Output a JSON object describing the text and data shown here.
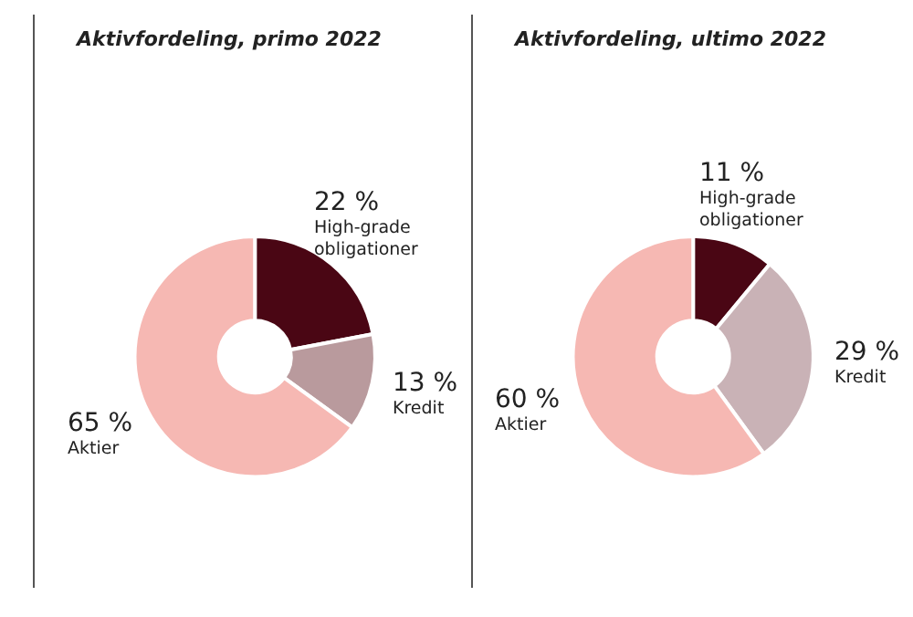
{
  "chart_data": [
    {
      "type": "donut",
      "title": "Aktivfordeling, primo 2022",
      "categories": [
        "High-grade obligationer",
        "Kredit",
        "Aktier"
      ],
      "values": [
        22,
        13,
        65
      ],
      "colors": [
        "#4a0614",
        "#b99a9d",
        "#f6b8b3"
      ],
      "value_labels": [
        "22 %",
        "13 %",
        "65 %"
      ]
    },
    {
      "type": "donut",
      "title": "Aktivfordeling, ultimo 2022",
      "categories": [
        "High-grade obligationer",
        "Kredit",
        "Aktier"
      ],
      "values": [
        11,
        29,
        60
      ],
      "colors": [
        "#4a0614",
        "#c9b2b6",
        "#f6b8b3"
      ],
      "value_labels": [
        "11 %",
        "29 %",
        "60 %"
      ]
    }
  ]
}
